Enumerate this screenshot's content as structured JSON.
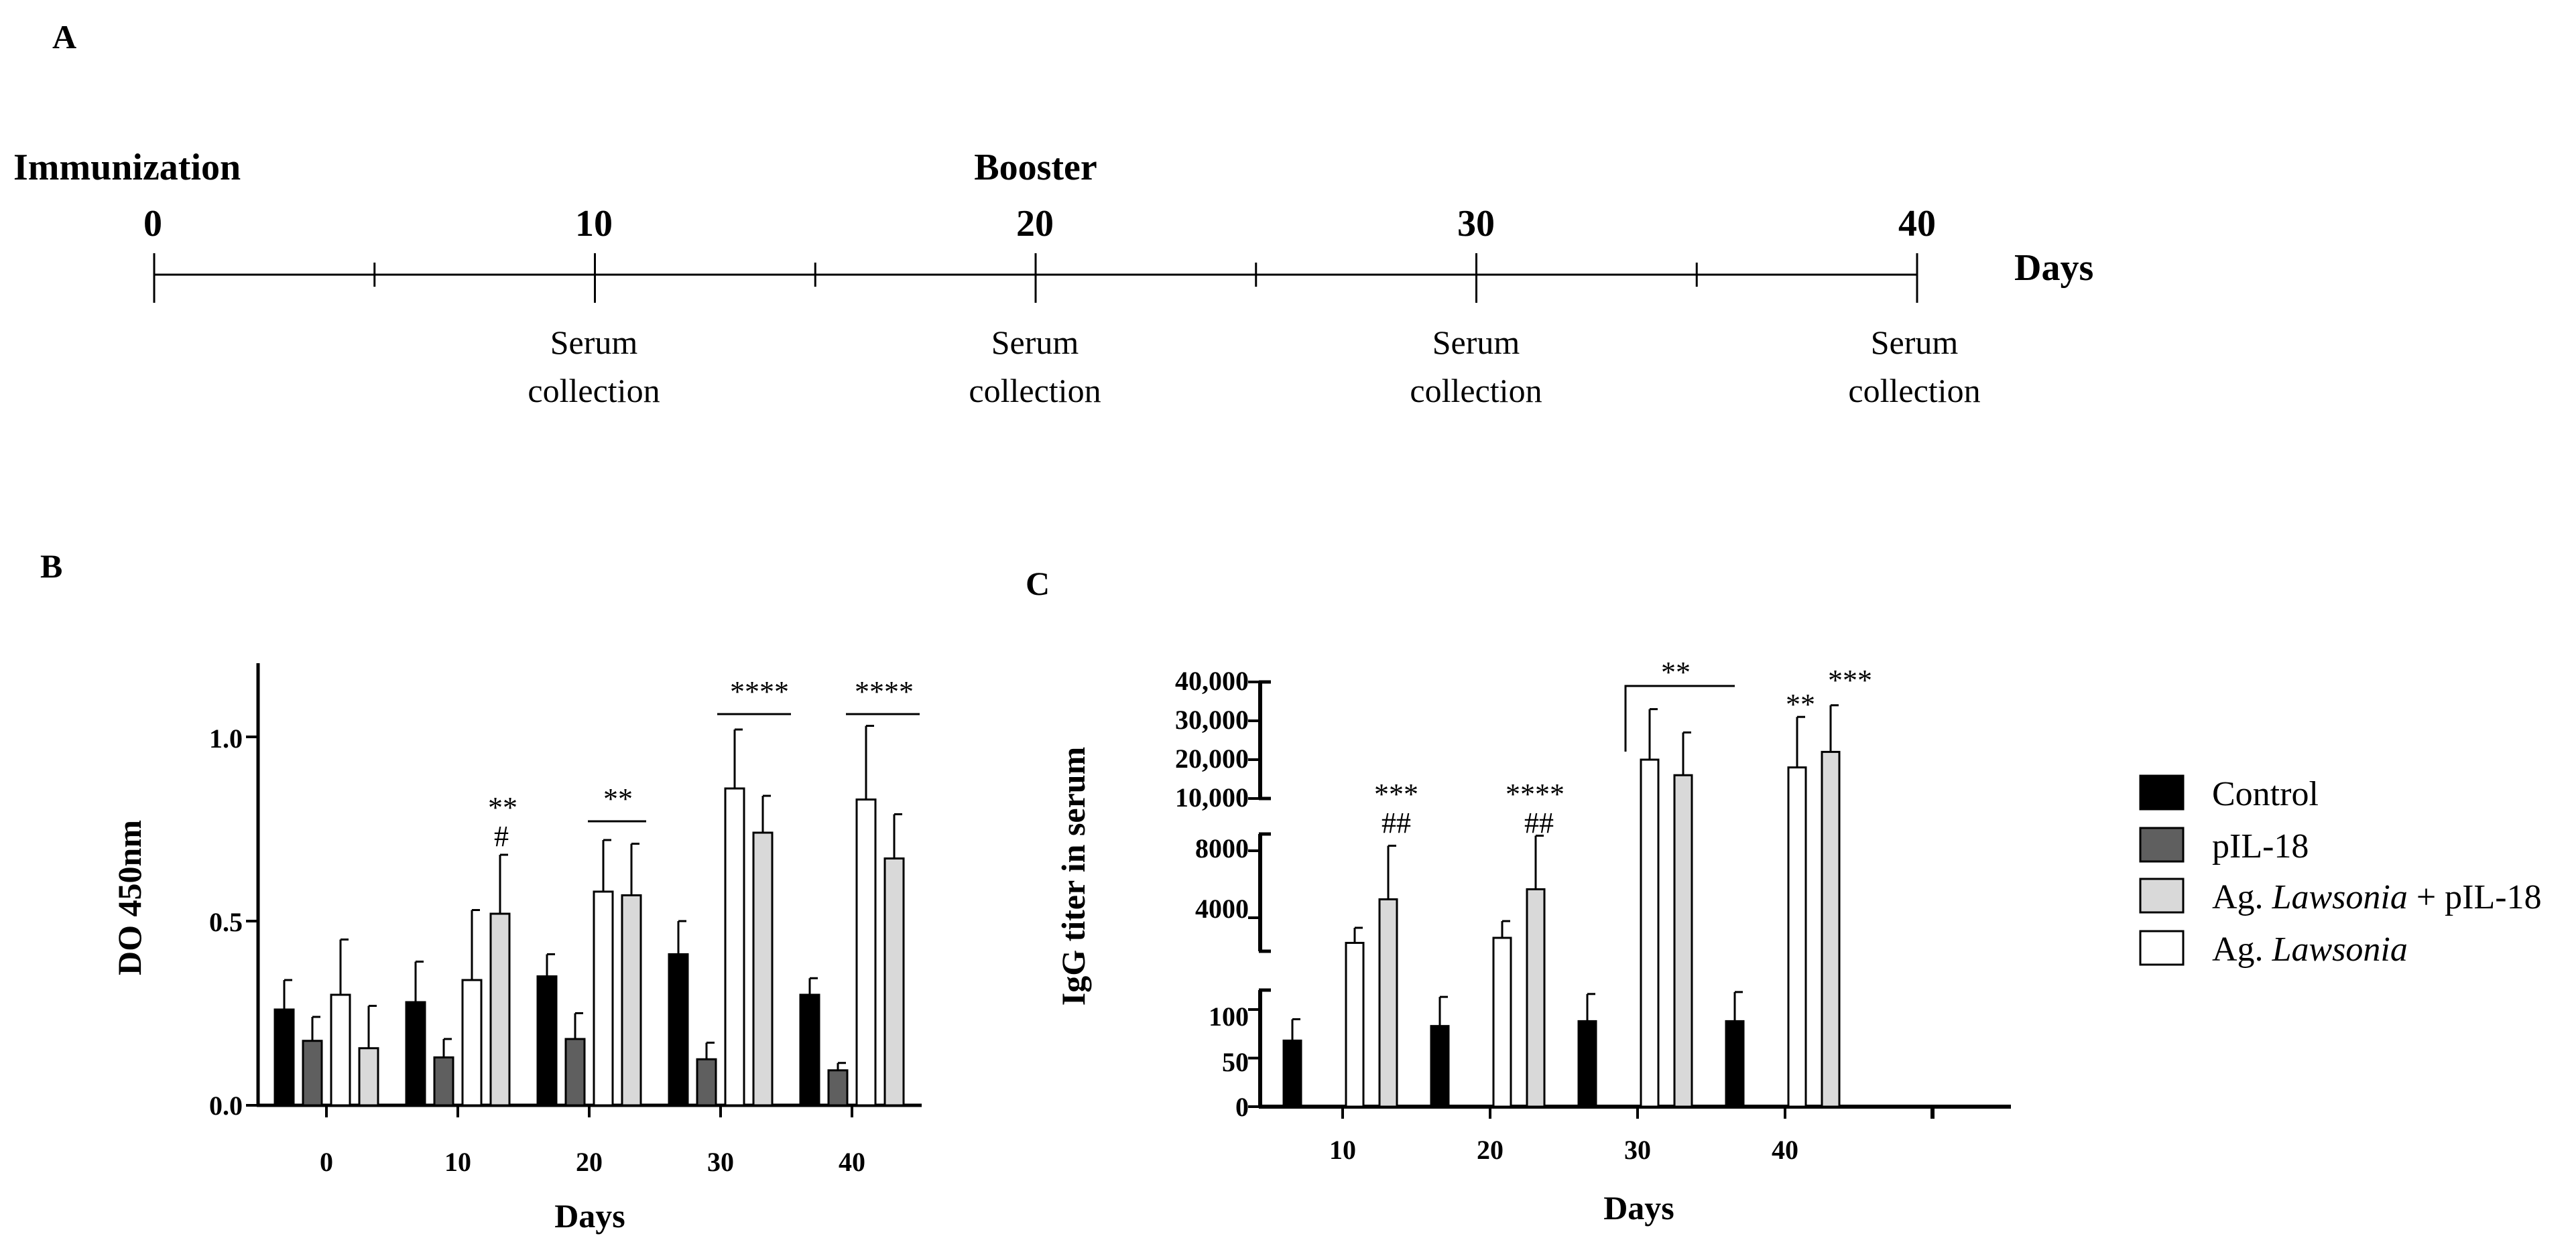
{
  "panels": {
    "a": "A",
    "b": "B",
    "c": "C"
  },
  "timeline": {
    "ticks": [
      "0",
      "10",
      "20",
      "30",
      "40"
    ],
    "days_label": "Days",
    "immunization_label": "Immunization",
    "booster_label": "Booster",
    "serum_line1": "Serum",
    "serum_line2": "collection",
    "collection_days": [
      10,
      20,
      30,
      40
    ]
  },
  "legend": {
    "items": [
      {
        "key": "control",
        "label": "Control",
        "color": "#000000"
      },
      {
        "key": "pil18",
        "label": "pIL-18",
        "color": "#5f5f5f"
      },
      {
        "key": "ag_pil18",
        "prefix": "Ag. ",
        "italic": "Lawsonia",
        "suffix": " + pIL-18",
        "color": "#d9d9d9"
      },
      {
        "key": "ag",
        "prefix": "Ag. ",
        "italic": "Lawsonia",
        "suffix": "",
        "color": "#ffffff"
      }
    ]
  },
  "colors": {
    "control": "#000000",
    "pil18": "#5f5f5f",
    "ag_pil18": "#d9d9d9",
    "ag": "#ffffff"
  },
  "chart_data": [
    {
      "id": "B",
      "type": "bar",
      "title": "",
      "xlabel": "Days",
      "ylabel": "DO 450nm",
      "categories": [
        "0",
        "10",
        "20",
        "30",
        "40"
      ],
      "ylim": [
        0,
        1.2
      ],
      "yticks": [
        "0.0",
        "0.5",
        "1.0"
      ],
      "series": [
        {
          "name": "Control",
          "values": [
            0.26,
            0.28,
            0.35,
            0.41,
            0.3
          ],
          "errors": [
            0.08,
            0.11,
            0.06,
            0.09,
            0.045
          ]
        },
        {
          "name": "pIL-18",
          "values": [
            0.175,
            0.13,
            0.18,
            0.125,
            0.095
          ],
          "errors": [
            0.065,
            0.05,
            0.07,
            0.045,
            0.02
          ]
        },
        {
          "name": "Ag. Lawsonia",
          "values": [
            0.3,
            0.34,
            0.58,
            0.86,
            0.83
          ],
          "errors": [
            0.15,
            0.19,
            0.14,
            0.16,
            0.2
          ]
        },
        {
          "name": "Ag. Lawsonia + pIL-18",
          "values": [
            0.155,
            0.52,
            0.57,
            0.74,
            0.67
          ],
          "errors": [
            0.115,
            0.16,
            0.14,
            0.1,
            0.12
          ]
        }
      ],
      "annotations": [
        {
          "day": "10",
          "text": "**",
          "text2": "#"
        },
        {
          "day": "20",
          "text": "**",
          "bracket": true
        },
        {
          "day": "30",
          "text": "****",
          "bracket": true
        },
        {
          "day": "40",
          "text": "****",
          "bracket": true
        }
      ]
    },
    {
      "id": "C",
      "type": "bar",
      "title": "",
      "xlabel": "Days",
      "ylabel": "IgG titer in serum",
      "categories": [
        "10",
        "20",
        "30",
        "40"
      ],
      "y_axis_segments": [
        {
          "range": [
            0,
            120
          ],
          "ticks": [
            "0",
            "50",
            "100"
          ]
        },
        {
          "range": [
            2000,
            9000
          ],
          "ticks": [
            "4000",
            "8000"
          ]
        },
        {
          "range": [
            10000,
            40000
          ],
          "ticks": [
            "10,000",
            "20,000",
            "30,000",
            "40,000"
          ]
        }
      ],
      "series": [
        {
          "name": "Control",
          "values": [
            68,
            83,
            88,
            88
          ],
          "errors": [
            22,
            30,
            28,
            30
          ]
        },
        {
          "name": "pIL-18",
          "values": [
            0,
            0,
            0,
            0
          ],
          "errors": [
            0,
            0,
            0,
            0
          ]
        },
        {
          "name": "Ag. Lawsonia",
          "values": [
            2500,
            2800,
            20000,
            18000
          ],
          "errors": [
            900,
            1000,
            13000,
            13000
          ]
        },
        {
          "name": "Ag. Lawsonia + pIL-18",
          "values": [
            5100,
            5700,
            16000,
            22000
          ],
          "errors": [
            3200,
            3200,
            11000,
            12000
          ]
        }
      ],
      "annotations": [
        {
          "day": "10",
          "text": "***",
          "text2": "##"
        },
        {
          "day": "20",
          "text": "****",
          "text2": "##"
        },
        {
          "day": "30",
          "text": "**",
          "bracket": true
        },
        {
          "day": "40",
          "text": "**",
          "text2": "***"
        }
      ]
    }
  ]
}
